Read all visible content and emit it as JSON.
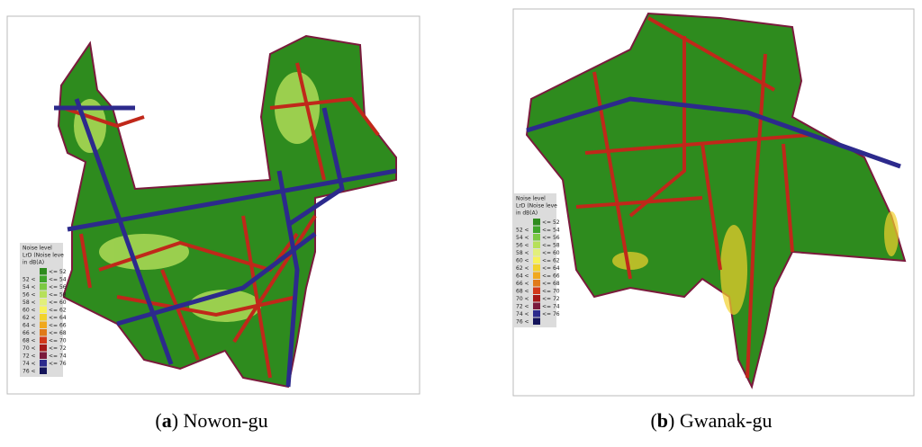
{
  "panels": [
    {
      "legend": {
        "title": "Noise level",
        "subtitle": "LrD (Noise leve",
        "unit": "in dB(A)"
      },
      "caption": {
        "open": "(",
        "label": "a",
        "rest": ") Nowon-gu"
      }
    },
    {
      "legend": {
        "title": "Noise level",
        "subtitle": "LrD (Noise leve",
        "unit": "in dB(A)"
      },
      "caption": {
        "open": "(",
        "label": "b",
        "rest": ") Gwanak-gu"
      }
    }
  ],
  "legend_rows": [
    {
      "color": "#2e8b1e",
      "high": "<= 52"
    },
    {
      "color": "#3fa52a",
      "low": "52 <",
      "high": "<= 54"
    },
    {
      "color": "#7cc943",
      "low": "54 <",
      "high": "<= 56"
    },
    {
      "color": "#b6e05a",
      "low": "56 <",
      "high": "<= 58"
    },
    {
      "color": "#e2ef7a",
      "low": "58 <",
      "high": "<= 60"
    },
    {
      "color": "#f7f25a",
      "low": "60 <",
      "high": "<= 62"
    },
    {
      "color": "#f2d22c",
      "low": "62 <",
      "high": "<= 64"
    },
    {
      "color": "#f0a81e",
      "low": "64 <",
      "high": "<= 66"
    },
    {
      "color": "#e07a1a",
      "low": "66 <",
      "high": "<= 68"
    },
    {
      "color": "#d2381a",
      "low": "68 <",
      "high": "<= 70"
    },
    {
      "color": "#a51818",
      "low": "70 <",
      "high": "<= 72"
    },
    {
      "color": "#7a1a3c",
      "low": "72 <",
      "high": "<= 74"
    },
    {
      "color": "#2c2a8c",
      "low": "74 <",
      "high": "<= 76"
    },
    {
      "color": "#14145a",
      "low": "76 <"
    }
  ]
}
